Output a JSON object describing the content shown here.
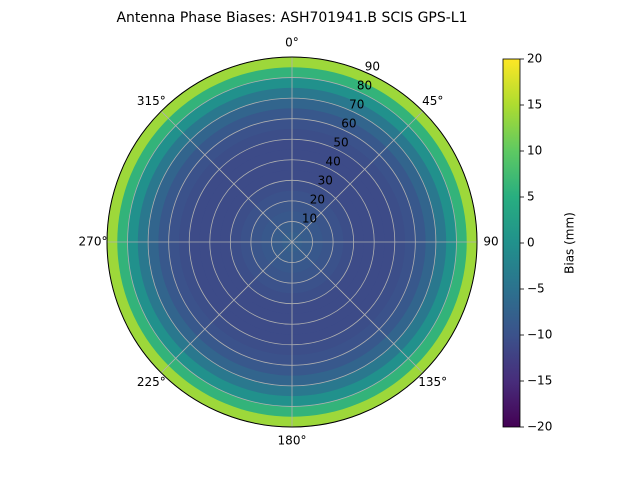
{
  "chart_data": {
    "type": "polar_heatmap",
    "title": "Antenna Phase Biases: ASH701941.B     SCIS GPS-L1",
    "theta_zero": "N",
    "theta_direction": "clockwise",
    "thetaticks": [
      {
        "value": 0,
        "label": "0°"
      },
      {
        "value": 45,
        "label": "45°"
      },
      90,
      {
        "value": 135,
        "label": "135°"
      },
      {
        "value": 180,
        "label": "180°"
      },
      {
        "value": 225,
        "label": "225°"
      },
      {
        "value": 270,
        "label": "270°"
      },
      {
        "value": 315,
        "label": "315°"
      }
    ],
    "rlim": [
      0,
      90
    ],
    "rticks": [
      10,
      20,
      30,
      40,
      50,
      60,
      70,
      80,
      90
    ],
    "r_bins": [
      0,
      5,
      10,
      15,
      20,
      25,
      30,
      35,
      40,
      45,
      50,
      55,
      60,
      65,
      70,
      75,
      80,
      85,
      90
    ],
    "values": [
      -8,
      -8.5,
      -9,
      -9.5,
      -10,
      -10.5,
      -11,
      -11,
      -11,
      -11,
      -10.5,
      -10,
      -9,
      -7,
      -4,
      0,
      6,
      14
    ],
    "colormap": "viridis",
    "clim": [
      -20,
      20
    ],
    "cbar_label": "Bias (mm)",
    "cbar_ticks": [
      {
        "value": -20,
        "label": "−20"
      },
      {
        "value": -15,
        "label": "−15"
      },
      {
        "value": -10,
        "label": "−10"
      },
      {
        "value": -5,
        "label": "−5"
      },
      0,
      5,
      10,
      15,
      20
    ],
    "grid": true
  }
}
